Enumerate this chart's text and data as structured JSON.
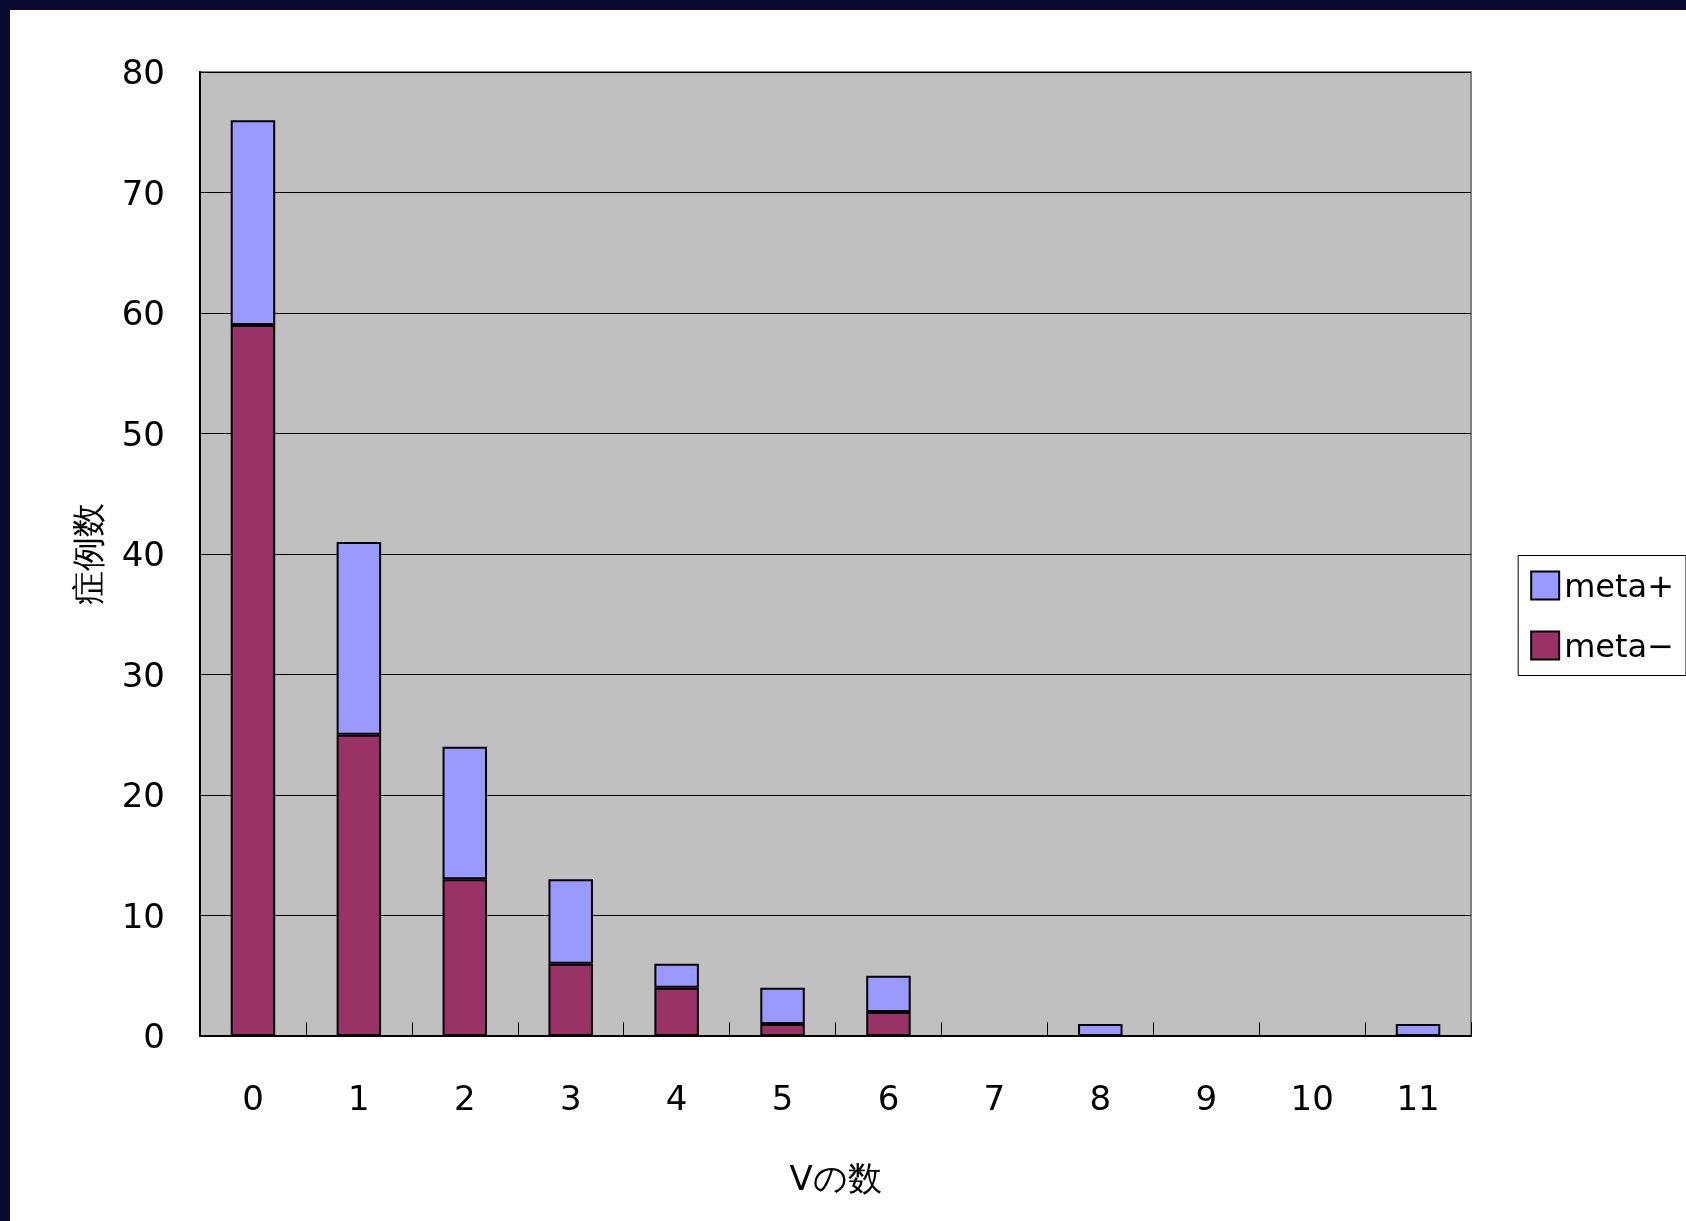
{
  "chart_data": {
    "type": "bar",
    "stacked": true,
    "xlabel": "Vの数",
    "ylabel": "症例数",
    "categories": [
      "0",
      "1",
      "2",
      "3",
      "4",
      "5",
      "6",
      "7",
      "8",
      "9",
      "10",
      "11"
    ],
    "series": [
      {
        "name": "meta−",
        "color": "#993366",
        "values": [
          59,
          25,
          13,
          6,
          4,
          1,
          2,
          0,
          0,
          0,
          0,
          0
        ]
      },
      {
        "name": "meta+",
        "color": "#9999ff",
        "values": [
          17,
          16,
          11,
          7,
          2,
          3,
          3,
          0,
          1,
          0,
          0,
          1
        ]
      }
    ],
    "ylim": [
      0,
      80
    ],
    "yticks": [
      0,
      10,
      20,
      30,
      40,
      50,
      60,
      70,
      80
    ],
    "grid": "y",
    "legend": "right"
  }
}
